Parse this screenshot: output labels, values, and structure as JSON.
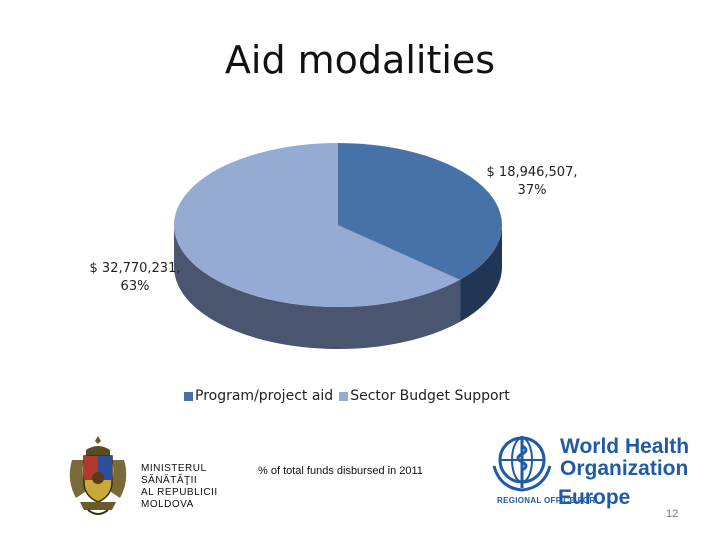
{
  "slide": {
    "title": "Aid modalities",
    "footnote": "% of total funds disbursed in 2011",
    "slide_number": "12"
  },
  "ministry": {
    "lines": [
      "MINISTERUL",
      "SĂNĂTĂŢII",
      "AL REPUBLICII",
      "MOLDOVA"
    ]
  },
  "who_logo": {
    "line1": "World Health",
    "line2": "Organization",
    "region": "REGIONAL OFFICE FOR",
    "europe": "Europe"
  },
  "chart_data": {
    "type": "pie",
    "title": "Aid modalities",
    "slices": [
      {
        "name": "Program/project aid",
        "value": 32770231,
        "percent": 63,
        "label_line1": "$ 32,770,231,",
        "label_line2": "63%",
        "color": "#95abd3",
        "side_color": "#4a5570"
      },
      {
        "name": "Sector Budget Support",
        "value": 18946507,
        "percent": 37,
        "label_line1": "$ 18,946,507,",
        "label_line2": "37%",
        "color": "#4672a8",
        "side_color": "#213655"
      }
    ],
    "legend": [
      "Program/project aid",
      "Sector Budget Support"
    ],
    "legend_placement": "bottom",
    "style": "3d"
  }
}
